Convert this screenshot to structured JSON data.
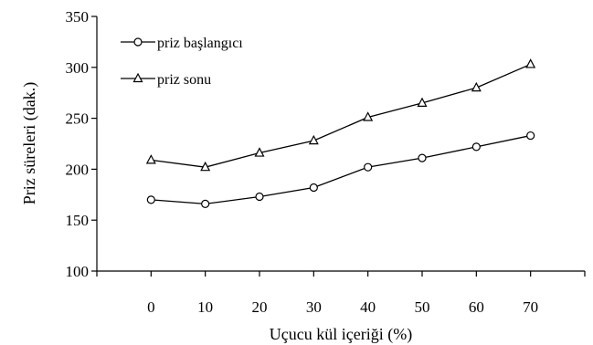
{
  "chart_data": {
    "type": "line",
    "title": "",
    "xlabel": "Uçucu kül içeriği (%)",
    "ylabel": "Priz süreleri (dak.)",
    "x": [
      0,
      10,
      20,
      30,
      40,
      50,
      60,
      70
    ],
    "x_ticks": [
      "0",
      "10",
      "20",
      "30",
      "40",
      "50",
      "60",
      "70"
    ],
    "xlim": [
      -10,
      80
    ],
    "ylim": [
      100,
      350
    ],
    "y_ticks": [
      "100",
      "150",
      "200",
      "250",
      "300",
      "350"
    ],
    "grid": false,
    "legend_position": "top-left",
    "series": [
      {
        "name": "priz başlangıcı",
        "marker": "circle",
        "color": "#000000",
        "values": [
          170,
          166,
          173,
          182,
          202,
          211,
          222,
          233
        ]
      },
      {
        "name": "priz sonu",
        "marker": "triangle",
        "color": "#000000",
        "values": [
          209,
          202,
          216,
          228,
          251,
          265,
          280,
          303
        ]
      }
    ]
  }
}
